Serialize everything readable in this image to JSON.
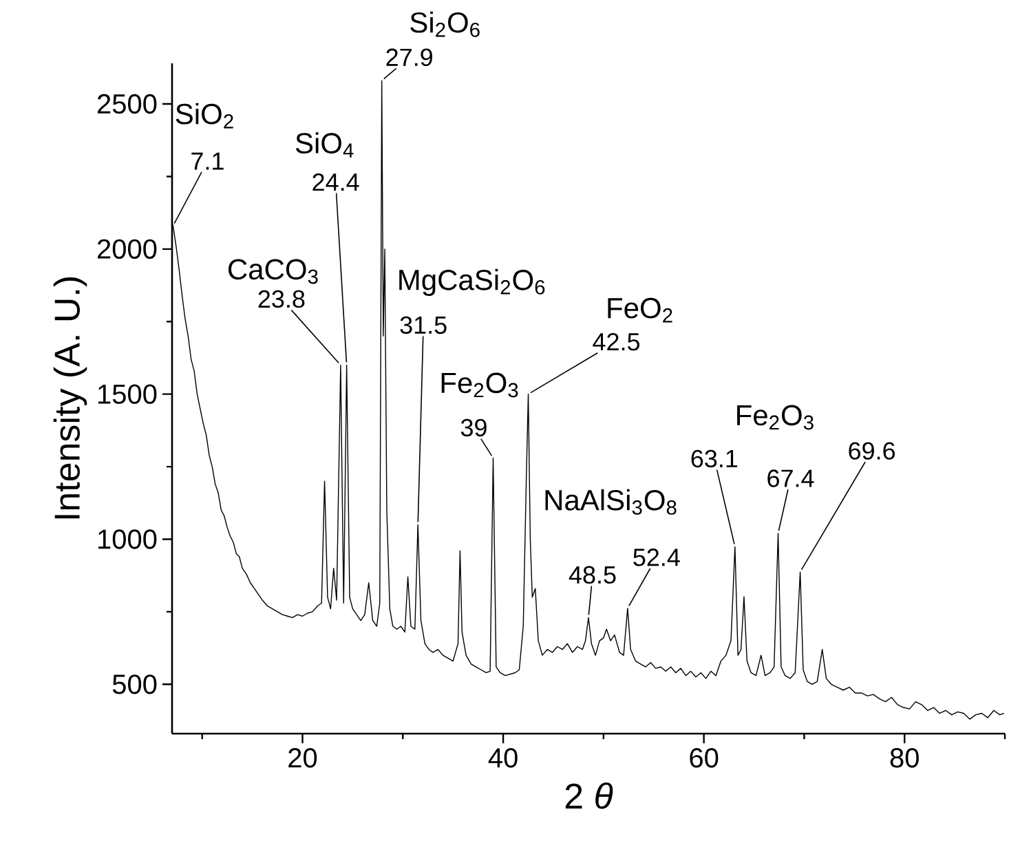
{
  "chart_data": {
    "type": "line",
    "xlabel": "2 *θ*",
    "ylabel": "Intensity (A. U.)",
    "xlim": [
      7,
      90
    ],
    "ylim": [
      330,
      2640
    ],
    "xticks": [
      {
        "value": 10,
        "label": null
      },
      20,
      {
        "value": 30,
        "label": null
      },
      40,
      {
        "value": 50,
        "label": null
      },
      60,
      {
        "value": 70,
        "label": null
      },
      80,
      {
        "value": 90,
        "label": null
      }
    ],
    "yticks": [
      500,
      {
        "value": 750,
        "label": null
      },
      1000,
      {
        "value": 1250,
        "label": null
      },
      1500,
      {
        "value": 1750,
        "label": null
      },
      2000,
      {
        "value": 2250,
        "label": null
      },
      2500
    ],
    "series": [
      {
        "color": "#000000",
        "x": [
          7.0,
          7.1,
          7.4,
          7.7,
          8.0,
          8.3,
          8.6,
          8.9,
          9.2,
          9.5,
          9.8,
          10.1,
          10.4,
          10.7,
          11.0,
          11.3,
          11.6,
          11.9,
          12.2,
          12.5,
          12.8,
          13.1,
          13.4,
          13.7,
          14.0,
          14.4,
          14.8,
          15.2,
          15.6,
          16.0,
          16.5,
          17.0,
          17.5,
          18.0,
          18.5,
          19.0,
          19.5,
          20.0,
          20.5,
          21.0,
          21.5,
          21.9,
          22.2,
          22.5,
          22.8,
          23.1,
          23.4,
          23.8,
          24.1,
          24.4,
          24.7,
          25.0,
          25.4,
          25.8,
          26.2,
          26.6,
          27.0,
          27.4,
          27.7,
          27.9,
          28.05,
          28.2,
          28.4,
          28.7,
          29.0,
          29.4,
          29.8,
          30.2,
          30.5,
          30.8,
          31.2,
          31.5,
          31.8,
          32.2,
          32.6,
          33.0,
          33.5,
          34.0,
          34.5,
          35.0,
          35.5,
          35.7,
          35.9,
          36.3,
          36.8,
          37.3,
          37.8,
          38.3,
          38.7,
          39.0,
          39.3,
          39.7,
          40.2,
          40.7,
          41.2,
          41.6,
          42.0,
          42.3,
          42.5,
          42.7,
          42.9,
          43.2,
          43.5,
          43.9,
          44.4,
          44.9,
          45.4,
          45.9,
          46.4,
          46.9,
          47.4,
          47.9,
          48.2,
          48.5,
          48.8,
          49.2,
          49.6,
          50.0,
          50.3,
          50.7,
          51.1,
          51.6,
          52.0,
          52.4,
          52.7,
          53.2,
          53.7,
          54.2,
          54.7,
          55.2,
          55.7,
          56.2,
          56.7,
          57.2,
          57.7,
          58.2,
          58.7,
          59.2,
          59.7,
          60.2,
          60.7,
          61.2,
          61.7,
          62.2,
          62.7,
          63.1,
          63.4,
          63.7,
          64.0,
          64.3,
          64.7,
          65.2,
          65.7,
          66.1,
          66.6,
          67.0,
          67.4,
          67.7,
          68.1,
          68.6,
          69.1,
          69.6,
          69.9,
          70.3,
          70.8,
          71.3,
          71.8,
          72.2,
          72.7,
          73.3,
          73.9,
          74.5,
          75.1,
          75.7,
          76.3,
          76.9,
          77.5,
          78.1,
          78.7,
          79.3,
          79.9,
          80.5,
          81.1,
          81.7,
          82.3,
          82.9,
          83.5,
          84.1,
          84.7,
          85.3,
          85.9,
          86.5,
          87.1,
          87.7,
          88.3,
          88.9,
          89.5,
          89.9
        ],
        "values": [
          2090,
          2080,
          2010,
          1930,
          1840,
          1760,
          1700,
          1620,
          1580,
          1500,
          1450,
          1400,
          1360,
          1290,
          1250,
          1190,
          1160,
          1100,
          1080,
          1040,
          1010,
          990,
          950,
          940,
          900,
          880,
          850,
          830,
          810,
          790,
          770,
          760,
          750,
          740,
          735,
          730,
          740,
          735,
          745,
          750,
          770,
          780,
          1200,
          800,
          760,
          900,
          790,
          1600,
          780,
          1600,
          800,
          760,
          740,
          720,
          740,
          850,
          720,
          700,
          780,
          2580,
          1700,
          2000,
          1100,
          760,
          700,
          690,
          700,
          680,
          870,
          700,
          690,
          1050,
          720,
          640,
          620,
          610,
          620,
          600,
          590,
          580,
          640,
          960,
          680,
          600,
          570,
          560,
          550,
          540,
          545,
          1280,
          560,
          540,
          530,
          535,
          540,
          550,
          700,
          1200,
          1500,
          1000,
          800,
          830,
          650,
          600,
          620,
          610,
          630,
          620,
          640,
          610,
          630,
          620,
          650,
          730,
          640,
          600,
          650,
          660,
          690,
          650,
          670,
          610,
          600,
          762,
          620,
          580,
          570,
          560,
          575,
          555,
          560,
          545,
          560,
          540,
          555,
          530,
          545,
          525,
          540,
          520,
          545,
          530,
          580,
          600,
          650,
          974,
          600,
          620,
          802,
          580,
          540,
          530,
          600,
          530,
          540,
          560,
          1020,
          560,
          530,
          520,
          540,
          887,
          550,
          510,
          500,
          510,
          620,
          520,
          500,
          490,
          480,
          490,
          470,
          470,
          460,
          465,
          450,
          440,
          455,
          430,
          420,
          415,
          440,
          430,
          410,
          420,
          400,
          410,
          395,
          405,
          400,
          380,
          395,
          400,
          385,
          410,
          395,
          400
        ]
      }
    ],
    "annotations": [
      "SiO$_{2}$",
      {
        "text": "7.1",
        "x": 7.1,
        "y": 2080
      },
      "CaCO$_{3}$",
      {
        "text": "23.8",
        "x": 23.8,
        "y": 1600
      },
      "SiO$_{4}$",
      {
        "text": "24.4",
        "x": 24.4,
        "y": 1600
      },
      "Si$_{2}$O$_{6}$",
      {
        "text": "27.9",
        "x": 27.9,
        "y": 2580
      },
      "MgCaSi$_{2}$O$_{6}$",
      {
        "text": "31.5",
        "x": 31.5,
        "y": 1050
      },
      "Fe$_{2}$O$_{3}$",
      {
        "text": "39",
        "x": 39,
        "y": 1280
      },
      "FeO$_{2}$",
      {
        "text": "42.5",
        "x": 42.5,
        "y": 1500
      },
      "NaAlSi$_{3}$O$_{8}$",
      {
        "text": "48.5",
        "x": 48.5,
        "y": 730
      },
      {
        "text": "52.4",
        "x": 52.4,
        "y": 762
      },
      "Fe$_{2}$O$_{3}$",
      {
        "text": "63.1",
        "x": 63.1,
        "y": 974
      },
      {
        "text": "67.4",
        "x": 67.4,
        "y": 1020
      },
      {
        "text": "69.6",
        "x": 69.6,
        "y": 887
      }
    ]
  }
}
